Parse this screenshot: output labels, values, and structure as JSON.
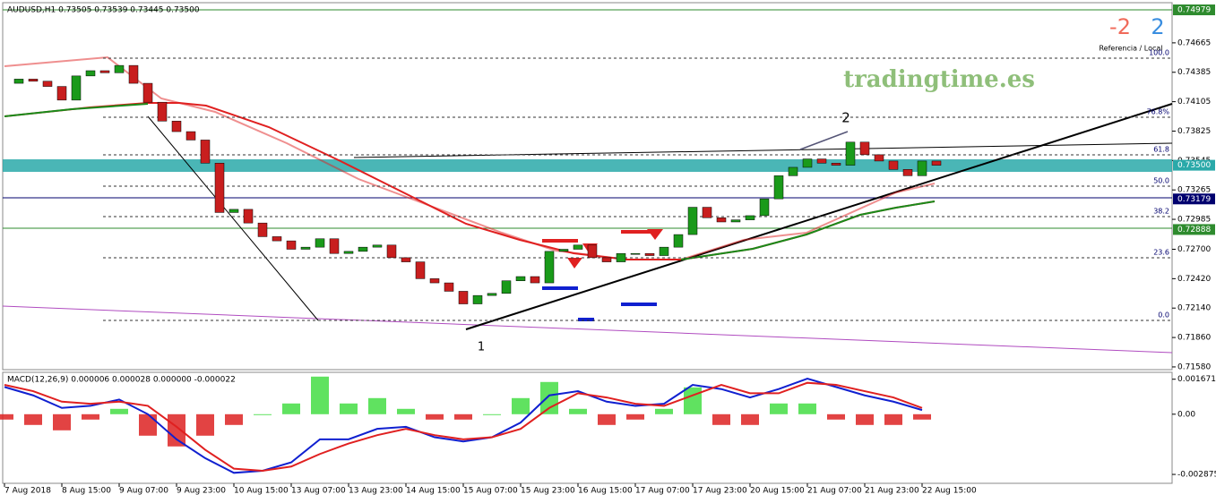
{
  "header": {
    "symbol": "AUDUSD,H1  0.73505 0.73539 0.73445 0.73500",
    "ref_left": "-2",
    "ref_right": "2",
    "ref_caption": "Referencia / Local",
    "watermark": "tradingtime.es",
    "wave_1": "1",
    "wave_2": "2"
  },
  "price_chart": {
    "type": "candlestick",
    "ylim": [
      0.71554,
      0.75073
    ],
    "yticks": [
      {
        "value": 0.74665,
        "label": "0.74665"
      },
      {
        "value": 0.74385,
        "label": "0.74385"
      },
      {
        "value": 0.74105,
        "label": "0.74105"
      },
      {
        "value": 0.73825,
        "label": "0.73825"
      },
      {
        "value": 0.73545,
        "label": "0.73545"
      },
      {
        "value": 0.73265,
        "label": "0.73265"
      },
      {
        "value": 0.72985,
        "label": "0.72985"
      },
      {
        "value": 0.727,
        "label": "0.72700"
      },
      {
        "value": 0.7242,
        "label": "0.72420"
      },
      {
        "value": 0.7214,
        "label": "0.72140"
      },
      {
        "value": 0.7186,
        "label": "0.71860"
      },
      {
        "value": 0.7158,
        "label": "0.71580"
      }
    ],
    "price_boxes": [
      {
        "value": 0.74979,
        "label": "0.74979",
        "color": "#2e8b2e"
      },
      {
        "value": 0.735,
        "label": "0.73500",
        "color": "#2aa9a9"
      },
      {
        "value": 0.73179,
        "label": "0.73179",
        "color": "#00006e"
      },
      {
        "value": 0.72888,
        "label": "0.72888",
        "color": "#2e8b2e"
      }
    ],
    "fib_levels": [
      {
        "value": 0.74519,
        "label": "100.0"
      },
      {
        "value": 0.73957,
        "label": "76.8%"
      },
      {
        "value": 0.73599,
        "label": "61.8"
      },
      {
        "value": 0.73301,
        "label": "50.0"
      },
      {
        "value": 0.73011,
        "label": "38.2"
      },
      {
        "value": 0.72619,
        "label": "23.6"
      },
      {
        "value": 0.72023,
        "label": "0.0"
      }
    ],
    "x": [
      "7 Aug 2018",
      "8 Aug 15:00",
      "9 Aug 07:00",
      "9 Aug 23:00",
      "10 Aug 15:00",
      "13 Aug 07:00",
      "13 Aug 23:00",
      "14 Aug 15:00",
      "15 Aug 07:00",
      "15 Aug 23:00",
      "16 Aug 15:00",
      "17 Aug 07:00",
      "17 Aug 23:00",
      "20 Aug 15:00",
      "21 Aug 07:00",
      "21 Aug 23:00",
      "22 Aug 15:00"
    ],
    "closes": [
      0.7428,
      0.7432,
      0.743,
      0.7425,
      0.7412,
      0.7435,
      0.744,
      0.7438,
      0.7445,
      0.7428,
      0.741,
      0.7392,
      0.7382,
      0.7374,
      0.7352,
      0.7305,
      0.7308,
      0.7295,
      0.7282,
      0.7278,
      0.727,
      0.7272,
      0.728,
      0.7266,
      0.7268,
      0.7272,
      0.7274,
      0.7262,
      0.7258,
      0.7242,
      0.7238,
      0.723,
      0.7218,
      0.7226,
      0.7228,
      0.724,
      0.7244,
      0.7238,
      0.7268,
      0.727,
      0.7274,
      0.7262,
      0.7258,
      0.7266,
      0.7266,
      0.7264,
      0.7272,
      0.7284,
      0.731,
      0.73,
      0.7296,
      0.7298,
      0.7302,
      0.7318,
      0.734,
      0.7348,
      0.7356,
      0.7352,
      0.735,
      0.7372,
      0.736,
      0.7354,
      0.7346,
      0.734,
      0.7354,
      0.735
    ],
    "up_color": "#1a9a1a",
    "down_color": "#c81e1e"
  },
  "macd_chart": {
    "type": "line",
    "title": "MACD(12,26,9) 0.000006 0.000028 0.000000 -0.000022",
    "ylim": [
      -0.0033,
      0.002
    ],
    "yticks": [
      {
        "value": 0.001671,
        "label": "0.001671"
      },
      {
        "value": 0,
        "label": "0.00"
      },
      {
        "value": -0.002875,
        "label": "-0.002875"
      }
    ],
    "series": [
      {
        "color": "#1020d0",
        "values": [
          0.0013,
          0.0009,
          0.0003,
          0.0004,
          0.0007,
          0,
          -0.0012,
          -0.0021,
          -0.0028,
          -0.0027,
          -0.0023,
          -0.0012,
          -0.0012,
          -0.0007,
          -0.0006,
          -0.0011,
          -0.0013,
          -0.0011,
          -0.0004,
          0.0009,
          0.0011,
          0.0006,
          0.0004,
          0.0005,
          0.0014,
          0.0012,
          0.0008,
          0.0012,
          0.0017,
          0.0013,
          0.0009,
          0.0006,
          0.0002
        ]
      },
      {
        "color": "#e02020",
        "values": [
          0.0014,
          0.0011,
          0.0006,
          0.0005,
          0.0006,
          0.0004,
          -0.0006,
          -0.0017,
          -0.0026,
          -0.0027,
          -0.0025,
          -0.0019,
          -0.0014,
          -0.001,
          -0.0007,
          -0.001,
          -0.0012,
          -0.0011,
          -0.0007,
          0.0003,
          0.001,
          0.0008,
          0.0005,
          0.0004,
          0.0009,
          0.0014,
          0.001,
          0.001,
          0.0015,
          0.0014,
          0.0011,
          0.0008,
          0.0003
        ]
      }
    ]
  }
}
